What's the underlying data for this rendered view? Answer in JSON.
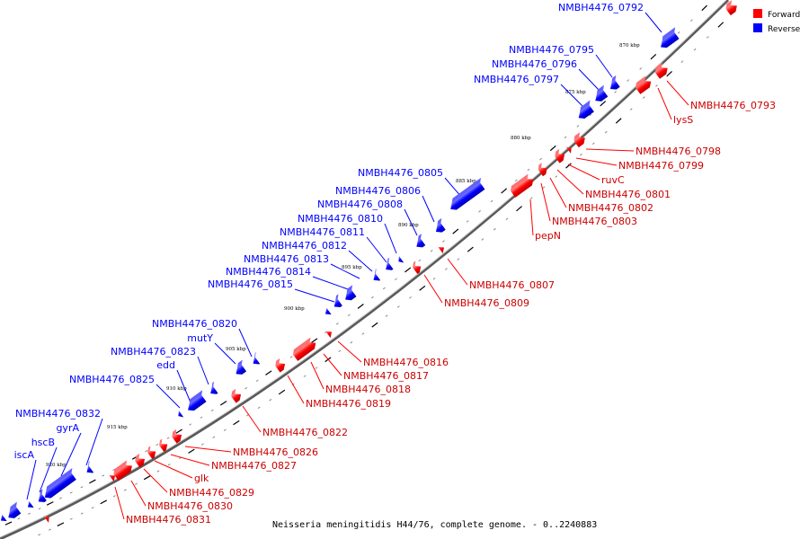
{
  "caption": "Neisseria meningitidis H44/76, complete genome. - 0..2240883",
  "legend": [
    {
      "label": "Forward",
      "color": "#ff0000"
    },
    {
      "label": "Reverse",
      "color": "#0000ff"
    }
  ],
  "colors": {
    "forward": "#ff0000",
    "reverse": "#0000ff",
    "backbone": "#555555"
  },
  "ticks": [
    "870 kbp",
    "875 kbp",
    "880 kbp",
    "885 kbp",
    "890 kbp",
    "895 kbp",
    "900 kbp",
    "905 kbp",
    "910 kbp",
    "915 kbp",
    "920 kbp"
  ],
  "reverse_labels": [
    "NMBH4476_0792",
    "NMBH4476_0795",
    "NMBH4476_0796",
    "NMBH4476_0797",
    "NMBH4476_0805",
    "NMBH4476_0806",
    "NMBH4476_0808",
    "NMBH4476_0810",
    "NMBH4476_0811",
    "NMBH4476_0812",
    "NMBH4476_0813",
    "NMBH4476_0814",
    "NMBH4476_0815",
    "NMBH4476_0820",
    "mutY",
    "NMBH4476_0823",
    "edd",
    "NMBH4476_0825",
    "NMBH4476_0832",
    "gyrA",
    "hscB",
    "iscA"
  ],
  "forward_labels": [
    "NMBH4476_0793",
    "lysS",
    "NMBH4476_0798",
    "NMBH4476_0799",
    "ruvC",
    "NMBH4476_0801",
    "NMBH4476_0802",
    "NMBH4476_0803",
    "pepN",
    "NMBH4476_0807",
    "NMBH4476_0809",
    "NMBH4476_0816",
    "NMBH4476_0817",
    "NMBH4476_0818",
    "NMBH4476_0819",
    "NMBH4476_0822",
    "NMBH4476_0826",
    "NMBH4476_0827",
    "glk",
    "NMBH4476_0829",
    "NMBH4476_0830",
    "NMBH4476_0831"
  ]
}
